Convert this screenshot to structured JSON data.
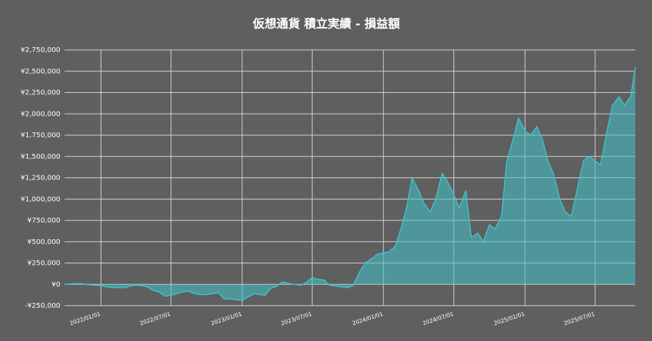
{
  "chart_data": {
    "type": "area",
    "title": "仮想通貨 積立実績 - 損益額",
    "color": "#3fc3cb",
    "grid": true,
    "ylim": [
      -250000,
      2750000
    ],
    "yticks": [
      {
        "value": -250000,
        "label": "-¥250,000"
      },
      {
        "value": 0,
        "label": "¥0"
      },
      {
        "value": 250000,
        "label": "¥250,000"
      },
      {
        "value": 500000,
        "label": "¥500,000"
      },
      {
        "value": 750000,
        "label": "¥750,000"
      },
      {
        "value": 1000000,
        "label": "¥1,000,000"
      },
      {
        "value": 1250000,
        "label": "¥1,250,000"
      },
      {
        "value": 1500000,
        "label": "¥1,500,000"
      },
      {
        "value": 1750000,
        "label": "¥1,750,000"
      },
      {
        "value": 2000000,
        "label": "¥2,000,000"
      },
      {
        "value": 2250000,
        "label": "¥2,250,000"
      },
      {
        "value": 2500000,
        "label": "¥2,500,000"
      },
      {
        "value": 2750000,
        "label": "¥2,750,000"
      }
    ],
    "xlim": [
      "2021/09/29",
      "2025/10/13"
    ],
    "xticks": [
      "2022/01/01",
      "2022/07/01",
      "2023/01/01",
      "2023/07/01",
      "2024/01/01",
      "2024/07/01",
      "2025/01/01",
      "2025/07/01"
    ],
    "x": [
      "2021/10/01",
      "2021/10/15",
      "2021/11/01",
      "2021/11/15",
      "2021/12/01",
      "2021/12/15",
      "2022/01/01",
      "2022/01/15",
      "2022/02/01",
      "2022/02/15",
      "2022/03/01",
      "2022/03/15",
      "2022/04/01",
      "2022/04/15",
      "2022/05/01",
      "2022/05/15",
      "2022/06/01",
      "2022/06/15",
      "2022/07/01",
      "2022/07/15",
      "2022/08/01",
      "2022/08/15",
      "2022/09/01",
      "2022/09/15",
      "2022/10/01",
      "2022/10/15",
      "2022/11/01",
      "2022/11/15",
      "2022/12/01",
      "2022/12/15",
      "2023/01/01",
      "2023/01/15",
      "2023/02/01",
      "2023/02/15",
      "2023/03/01",
      "2023/03/15",
      "2023/04/01",
      "2023/04/15",
      "2023/05/01",
      "2023/05/15",
      "2023/06/01",
      "2023/06/15",
      "2023/07/01",
      "2023/07/15",
      "2023/08/01",
      "2023/08/15",
      "2023/09/01",
      "2023/09/15",
      "2023/10/01",
      "2023/10/15",
      "2023/11/01",
      "2023/11/15",
      "2023/12/01",
      "2023/12/15",
      "2024/01/01",
      "2024/01/15",
      "2024/02/01",
      "2024/02/15",
      "2024/03/01",
      "2024/03/15",
      "2024/04/01",
      "2024/04/15",
      "2024/05/01",
      "2024/05/15",
      "2024/06/01",
      "2024/06/15",
      "2024/07/01",
      "2024/07/15",
      "2024/08/01",
      "2024/08/15",
      "2024/09/01",
      "2024/09/15",
      "2024/10/01",
      "2024/10/15",
      "2024/11/01",
      "2024/11/15",
      "2024/12/01",
      "2024/12/15",
      "2025/01/01",
      "2025/01/15",
      "2025/02/01",
      "2025/02/15",
      "2025/03/01",
      "2025/03/15",
      "2025/04/01",
      "2025/04/15",
      "2025/05/01",
      "2025/05/15",
      "2025/06/01",
      "2025/06/15",
      "2025/07/01",
      "2025/07/15",
      "2025/08/01",
      "2025/08/15",
      "2025/09/01",
      "2025/09/15",
      "2025/10/01",
      "2025/10/13"
    ],
    "values": [
      0,
      5000,
      10000,
      5000,
      -5000,
      -10000,
      -15000,
      -30000,
      -40000,
      -35000,
      -40000,
      -25000,
      -10000,
      -15000,
      -30000,
      -70000,
      -90000,
      -140000,
      -130000,
      -110000,
      -90000,
      -80000,
      -110000,
      -120000,
      -120000,
      -110000,
      -100000,
      -170000,
      -170000,
      -180000,
      -190000,
      -150000,
      -110000,
      -120000,
      -130000,
      -50000,
      -20000,
      30000,
      10000,
      0,
      -10000,
      20000,
      80000,
      60000,
      50000,
      -10000,
      -20000,
      -30000,
      -40000,
      -10000,
      150000,
      250000,
      300000,
      350000,
      370000,
      380000,
      450000,
      650000,
      900000,
      1250000,
      1100000,
      950000,
      850000,
      1000000,
      1300000,
      1200000,
      1050000,
      900000,
      1100000,
      550000,
      600000,
      500000,
      700000,
      650000,
      800000,
      1450000,
      1700000,
      1950000,
      1800000,
      1750000,
      1850000,
      1700000,
      1450000,
      1300000,
      1000000,
      850000,
      800000,
      1100000,
      1450000,
      1500000,
      1450000,
      1400000,
      1800000,
      2100000,
      2200000,
      2100000,
      2200000,
      2550000
    ]
  }
}
